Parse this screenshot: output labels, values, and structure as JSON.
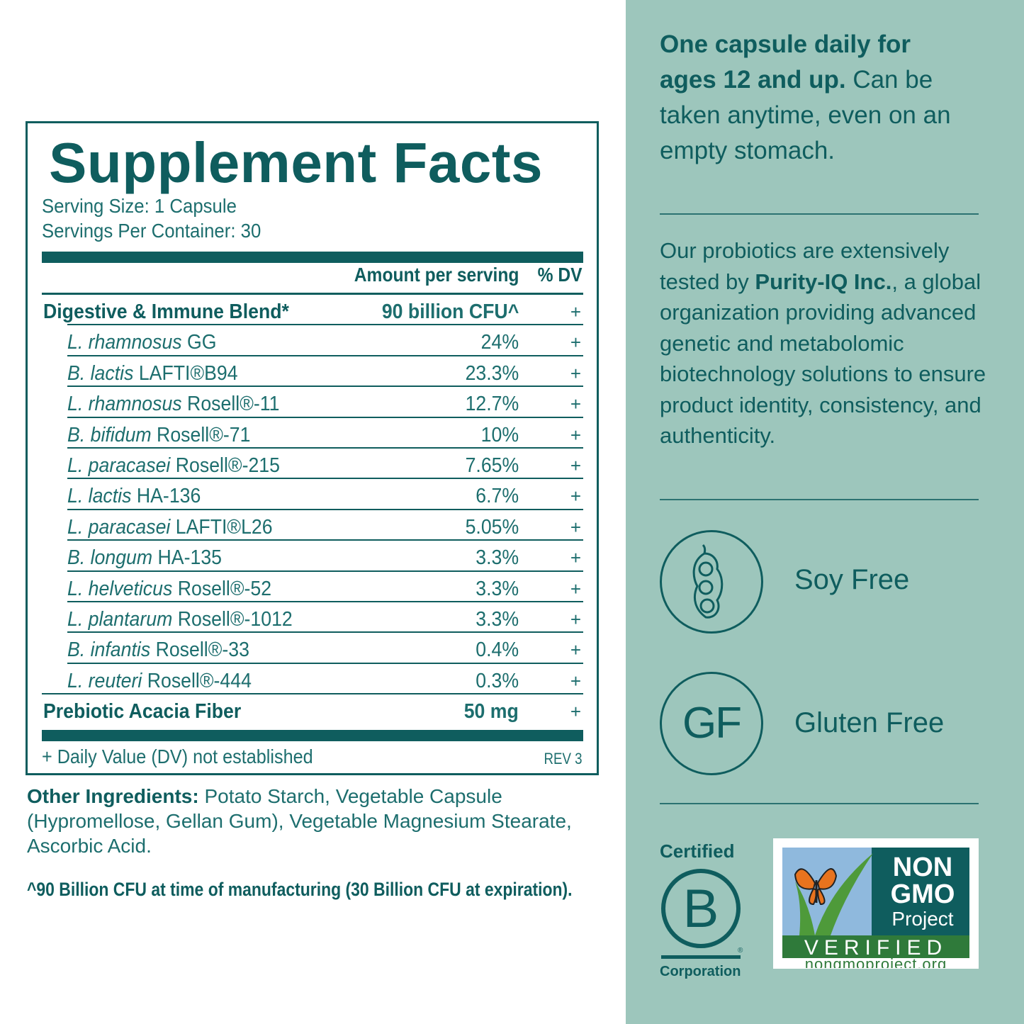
{
  "facts": {
    "title": "Supplement Facts",
    "serving_size": "Serving Size: 1 Capsule",
    "servings_per_container": "Servings Per Container: 30",
    "col_amount": "Amount per serving",
    "col_dv": "% DV",
    "blend": {
      "name": "Digestive & Immune Blend*",
      "amount": "90 billion CFU^",
      "dv": "+"
    },
    "strains": [
      {
        "species": "L. rhamnosus",
        "strain": " GG",
        "amount": "24%",
        "dv": "+"
      },
      {
        "species": "B. lactis",
        "strain": " LAFTI®B94",
        "amount": "23.3%",
        "dv": "+"
      },
      {
        "species": "L. rhamnosus",
        "strain": " Rosell®-11",
        "amount": "12.7%",
        "dv": "+"
      },
      {
        "species": "B. bifidum",
        "strain": " Rosell®-71",
        "amount": "10%",
        "dv": "+"
      },
      {
        "species": "L. paracasei",
        "strain": " Rosell®-215",
        "amount": "7.65%",
        "dv": "+"
      },
      {
        "species": "L. lactis",
        "strain": " HA-136",
        "amount": "6.7%",
        "dv": "+"
      },
      {
        "species": "L. paracasei",
        "strain": " LAFTI®L26",
        "amount": "5.05%",
        "dv": "+"
      },
      {
        "species": "B. longum",
        "strain": " HA-135",
        "amount": "3.3%",
        "dv": "+"
      },
      {
        "species": "L. helveticus",
        "strain": " Rosell®-52",
        "amount": "3.3%",
        "dv": "+"
      },
      {
        "species": "L. plantarum",
        "strain": " Rosell®-1012",
        "amount": "3.3%",
        "dv": "+"
      },
      {
        "species": "B. infantis",
        "strain": " Rosell®-33",
        "amount": "0.4%",
        "dv": "+"
      },
      {
        "species": "L. reuteri",
        "strain": " Rosell®-444",
        "amount": "0.3%",
        "dv": "+"
      }
    ],
    "prebiotic": {
      "name": "Prebiotic Acacia Fiber",
      "amount": "50 mg",
      "dv": "+"
    },
    "footnote": "+ Daily Value (DV) not established",
    "rev": "REV 3"
  },
  "other_ingredients": {
    "label": "Other Ingredients:",
    "text": " Potato Starch, Vegetable Capsule (Hypromellose, Gellan Gum), Vegetable Magnesium Stearate, Ascorbic Acid."
  },
  "cfu_note": "^90 Billion CFU at time of manufacturing (30 Billion CFU at expiration).",
  "dosage": {
    "bold": "One capsule daily for ages 12 and up.",
    "text": " Can be taken anytime, even on an empty stomach."
  },
  "testing": {
    "pre": "Our probiotics are extensively tested by ",
    "company": "Purity-IQ Inc.",
    "post": ", a global organization providing advanced genetic and metabolomic biotechnology solutions to ensure product identity, consistency, and authenticity."
  },
  "badges": {
    "soy": {
      "label": "Soy Free",
      "icon": "soybean-pod-icon"
    },
    "gluten": {
      "label": "Gluten Free",
      "abbr": "GF",
      "icon": "gf-circle-icon"
    }
  },
  "bcorp": {
    "top": "Certified",
    "bottom": "Corporation",
    "letter": "B",
    "reg": "®"
  },
  "nongmo": {
    "line1": "NON",
    "line2": "GMO",
    "line3": "Project",
    "verified": "VERIFIED",
    "url": "nongmoproject.org"
  },
  "colors": {
    "teal": "#0f5d5e",
    "panel": "#9dc6bc",
    "sky": "#8fb9dd",
    "leaf": "#4e9a3a",
    "butterfly": "#e8731e"
  }
}
